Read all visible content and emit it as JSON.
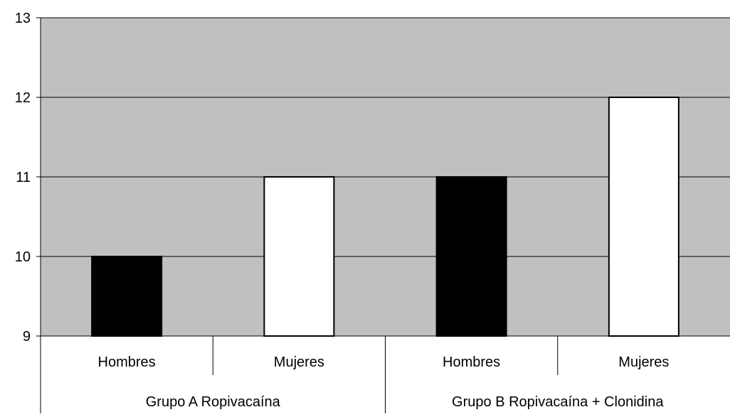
{
  "chart_data": {
    "type": "bar",
    "groups": [
      {
        "label": "Grupo A Ropivacaína",
        "categories": [
          "Hombres",
          "Mujeres"
        ]
      },
      {
        "label": "Grupo B Ropivacaína + Clonidina",
        "categories": [
          "Hombres",
          "Mujeres"
        ]
      }
    ],
    "categories": [
      "Hombres",
      "Mujeres",
      "Hombres",
      "Mujeres"
    ],
    "values": [
      10,
      11,
      11,
      12
    ],
    "bar_colors": [
      "#000000",
      "#ffffff",
      "#000000",
      "#ffffff"
    ],
    "ylim": [
      9,
      13
    ],
    "yticks": [
      9,
      10,
      11,
      12,
      13
    ],
    "grid": true,
    "title": "",
    "xlabel": "",
    "ylabel": "",
    "plot_background": "#c0c0c0"
  }
}
